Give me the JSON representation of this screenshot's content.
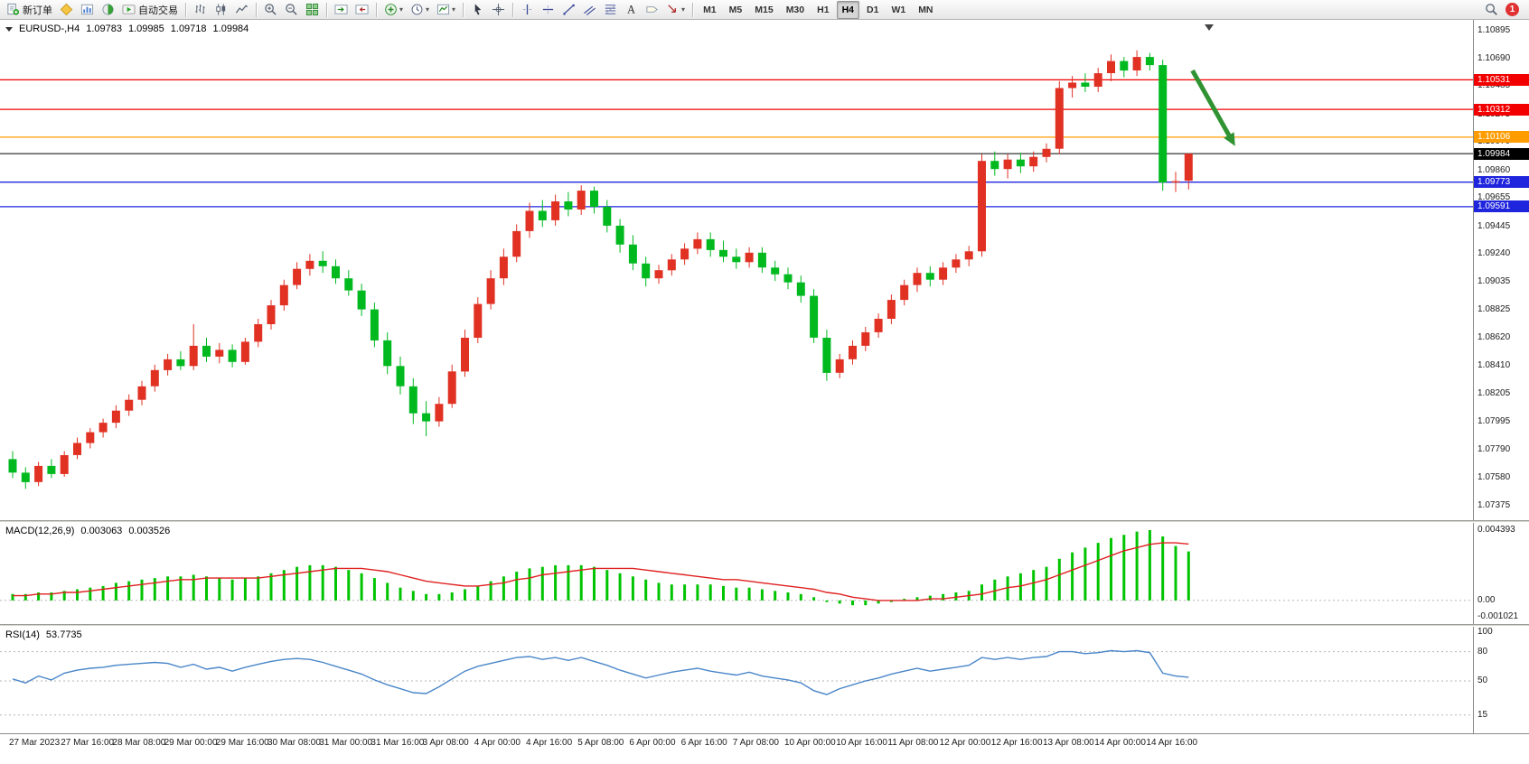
{
  "toolbar": {
    "buttons": [
      {
        "name": "new-order",
        "icon": "neworder",
        "label": "新订单"
      },
      {
        "name": "mql-community",
        "icon": "mql"
      },
      {
        "name": "chart-profile",
        "icon": "profile"
      },
      {
        "name": "market-depth",
        "icon": "depth"
      },
      {
        "name": "auto-trading",
        "icon": "autotrade",
        "label": "自动交易"
      },
      {
        "sep": true
      },
      {
        "name": "bar-chart-mode",
        "icon": "bars"
      },
      {
        "name": "candlestick-mode",
        "icon": "candles"
      },
      {
        "name": "line-chart-mode",
        "icon": "linechart"
      },
      {
        "sep": true
      },
      {
        "name": "zoom-in",
        "icon": "zoomin"
      },
      {
        "name": "zoom-out",
        "icon": "zoomout"
      },
      {
        "name": "tile-windows",
        "icon": "tile"
      },
      {
        "sep": true
      },
      {
        "name": "auto-scroll",
        "icon": "autoscroll"
      },
      {
        "name": "chart-shift",
        "icon": "chartshift"
      },
      {
        "sep": true
      },
      {
        "name": "indicators",
        "icon": "indicators",
        "dropdown": true
      },
      {
        "name": "periods",
        "icon": "clock",
        "dropdown": true
      },
      {
        "name": "templates",
        "icon": "template",
        "dropdown": true
      },
      {
        "sep": true
      },
      {
        "name": "cursor-tool",
        "icon": "cursor"
      },
      {
        "name": "crosshair-tool",
        "icon": "crosshair"
      },
      {
        "sep": true
      },
      {
        "name": "vertical-line-tool",
        "icon": "vline"
      },
      {
        "name": "horizontal-line-tool",
        "icon": "hline"
      },
      {
        "name": "trendline-tool",
        "icon": "trendline"
      },
      {
        "name": "equidistant-channel-tool",
        "icon": "channel"
      },
      {
        "name": "fibonacci-tool",
        "icon": "fibo"
      },
      {
        "name": "text-tool",
        "icon": "text"
      },
      {
        "name": "label-tool",
        "icon": "label"
      },
      {
        "name": "arrows-tool",
        "icon": "arrowobj",
        "dropdown": true
      },
      {
        "sep": true
      }
    ],
    "timeframes": [
      "M1",
      "M5",
      "M15",
      "M30",
      "H1",
      "H4",
      "D1",
      "W1",
      "MN"
    ],
    "active_timeframe": "H4",
    "notification_badge": "1"
  },
  "chart_header": {
    "symbol_period": "EURUSD-,H4",
    "open": "1.09783",
    "high": "1.09985",
    "low": "1.09718",
    "close": "1.09984"
  },
  "levels": [
    {
      "price": 1.10531,
      "label": "1.10531",
      "color": "#f20000"
    },
    {
      "price": 1.10312,
      "label": "1.10312",
      "color": "#f20000"
    },
    {
      "price": 1.10106,
      "label": "1.10106",
      "color": "#ff9c00"
    },
    {
      "price": 1.09984,
      "label": "1.09984",
      "color": "#000000",
      "current": true
    },
    {
      "price": 1.09773,
      "label": "1.09773",
      "color": "#1f24dd"
    },
    {
      "price": 1.09591,
      "label": "1.09591",
      "color": "#1f24dd"
    }
  ],
  "price_axis": {
    "top": 1.10895,
    "bottom": 1.07375,
    "labels": [
      "1.10895",
      "1.10690",
      "1.10485",
      "1.10275",
      "1.10070",
      "1.09860",
      "1.09655",
      "1.09445",
      "1.09240",
      "1.09035",
      "1.08825",
      "1.08620",
      "1.08410",
      "1.08205",
      "1.07995",
      "1.07790",
      "1.07580",
      "1.07375"
    ]
  },
  "time_axis": [
    "27 Mar 2023",
    "27 Mar 16:00",
    "28 Mar 08:00",
    "29 Mar 00:00",
    "29 Mar 16:00",
    "30 Mar 08:00",
    "31 Mar 00:00",
    "31 Mar 16:00",
    "3 Apr 08:00",
    "4 Apr 00:00",
    "4 Apr 16:00",
    "5 Apr 08:00",
    "6 Apr 00:00",
    "6 Apr 16:00",
    "7 Apr 08:00",
    "10 Apr 00:00",
    "10 Apr 16:00",
    "11 Apr 08:00",
    "12 Apr 00:00",
    "12 Apr 16:00",
    "13 Apr 08:00",
    "14 Apr 00:00",
    "14 Apr 16:00"
  ],
  "chart_data": {
    "type": "candlestick",
    "symbol": "EURUSD-",
    "timeframe": "H4",
    "colors": {
      "up": "#e03123",
      "down": "#00b91f"
    },
    "candles": [
      [
        1.0772,
        1.0778,
        1.0758,
        1.0762
      ],
      [
        1.0762,
        1.0766,
        1.075,
        1.0755
      ],
      [
        1.0755,
        1.077,
        1.0752,
        1.0767
      ],
      [
        1.0767,
        1.0772,
        1.0758,
        1.0761
      ],
      [
        1.0761,
        1.0778,
        1.0759,
        1.0775
      ],
      [
        1.0775,
        1.0788,
        1.0772,
        1.0784
      ],
      [
        1.0784,
        1.0795,
        1.078,
        1.0792
      ],
      [
        1.0792,
        1.0802,
        1.0788,
        1.0799
      ],
      [
        1.0799,
        1.0812,
        1.0795,
        1.0808
      ],
      [
        1.0808,
        1.082,
        1.0804,
        1.0816
      ],
      [
        1.0816,
        1.083,
        1.0812,
        1.0826
      ],
      [
        1.0826,
        1.0842,
        1.0822,
        1.0838
      ],
      [
        1.0838,
        1.085,
        1.0834,
        1.0846
      ],
      [
        1.0846,
        1.0852,
        1.0838,
        1.0841
      ],
      [
        1.0841,
        1.0872,
        1.0838,
        1.0856
      ],
      [
        1.0856,
        1.0862,
        1.0844,
        1.0848
      ],
      [
        1.0848,
        1.0858,
        1.0843,
        1.0853
      ],
      [
        1.0853,
        1.0857,
        1.084,
        1.0844
      ],
      [
        1.0844,
        1.0862,
        1.0842,
        1.0859
      ],
      [
        1.0859,
        1.0876,
        1.0855,
        1.0872
      ],
      [
        1.0872,
        1.089,
        1.0868,
        1.0886
      ],
      [
        1.0886,
        1.0905,
        1.0882,
        1.0901
      ],
      [
        1.0901,
        1.0918,
        1.0898,
        1.0913
      ],
      [
        1.0913,
        1.0924,
        1.0908,
        1.0919
      ],
      [
        1.0919,
        1.0926,
        1.091,
        1.0915
      ],
      [
        1.0915,
        1.092,
        1.0902,
        1.0906
      ],
      [
        1.0906,
        1.0912,
        1.0893,
        1.0897
      ],
      [
        1.0897,
        1.0902,
        1.0878,
        1.0883
      ],
      [
        1.0883,
        1.0888,
        1.0855,
        1.086
      ],
      [
        1.086,
        1.0866,
        1.0835,
        1.0841
      ],
      [
        1.0841,
        1.0848,
        1.082,
        1.0826
      ],
      [
        1.0826,
        1.0832,
        1.0798,
        1.0806
      ],
      [
        1.0806,
        1.0815,
        1.0789,
        1.08
      ],
      [
        1.08,
        1.0818,
        1.0796,
        1.0813
      ],
      [
        1.0813,
        1.0842,
        1.081,
        1.0837
      ],
      [
        1.0837,
        1.0868,
        1.0833,
        1.0862
      ],
      [
        1.0862,
        1.0892,
        1.0858,
        1.0887
      ],
      [
        1.0887,
        1.0912,
        1.0883,
        1.0906
      ],
      [
        1.0906,
        1.0928,
        1.0901,
        1.0922
      ],
      [
        1.0922,
        1.0946,
        1.0918,
        1.0941
      ],
      [
        1.0941,
        1.0962,
        1.0936,
        1.0956
      ],
      [
        1.0956,
        1.0964,
        1.0944,
        1.0949
      ],
      [
        1.0949,
        1.0968,
        1.0945,
        1.0963
      ],
      [
        1.0963,
        1.097,
        1.0952,
        1.0957
      ],
      [
        1.0957,
        1.0975,
        1.0953,
        1.0971
      ],
      [
        1.0971,
        1.0974,
        1.0954,
        1.0959
      ],
      [
        1.0959,
        1.0964,
        1.094,
        1.0945
      ],
      [
        1.0945,
        1.095,
        1.0925,
        1.0931
      ],
      [
        1.0931,
        1.0938,
        1.0912,
        1.0917
      ],
      [
        1.0917,
        1.0922,
        1.09,
        1.0906
      ],
      [
        1.0906,
        1.0916,
        1.0902,
        1.0912
      ],
      [
        1.0912,
        1.0924,
        1.0908,
        1.092
      ],
      [
        1.092,
        1.0932,
        1.0916,
        1.0928
      ],
      [
        1.0928,
        1.094,
        1.0924,
        1.0935
      ],
      [
        1.0935,
        1.094,
        1.0922,
        1.0927
      ],
      [
        1.0927,
        1.0934,
        1.0918,
        1.0922
      ],
      [
        1.0922,
        1.0928,
        1.0913,
        1.0918
      ],
      [
        1.0918,
        1.0929,
        1.0914,
        1.0925
      ],
      [
        1.0925,
        1.0929,
        1.091,
        1.0914
      ],
      [
        1.0914,
        1.0919,
        1.0904,
        1.0909
      ],
      [
        1.0909,
        1.0914,
        1.0898,
        1.0903
      ],
      [
        1.0903,
        1.0908,
        1.0888,
        1.0893
      ],
      [
        1.0893,
        1.0898,
        1.0858,
        1.0862
      ],
      [
        1.0862,
        1.0868,
        1.083,
        1.0836
      ],
      [
        1.0836,
        1.085,
        1.0832,
        1.0846
      ],
      [
        1.0846,
        1.086,
        1.0842,
        1.0856
      ],
      [
        1.0856,
        1.087,
        1.0852,
        1.0866
      ],
      [
        1.0866,
        1.088,
        1.0862,
        1.0876
      ],
      [
        1.0876,
        1.0894,
        1.0872,
        1.089
      ],
      [
        1.089,
        1.0905,
        1.0886,
        1.0901
      ],
      [
        1.0901,
        1.0914,
        1.0896,
        1.091
      ],
      [
        1.091,
        1.0915,
        1.09,
        1.0905
      ],
      [
        1.0905,
        1.0918,
        1.0901,
        1.0914
      ],
      [
        1.0914,
        1.0924,
        1.091,
        1.092
      ],
      [
        1.092,
        1.093,
        1.0915,
        1.0926
      ],
      [
        1.0926,
        1.0998,
        1.0922,
        1.0993
      ],
      [
        1.0993,
        1.1,
        1.0982,
        1.0987
      ],
      [
        1.0987,
        1.0998,
        1.098,
        1.0994
      ],
      [
        1.0994,
        1.0999,
        1.0984,
        1.0989
      ],
      [
        1.0989,
        1.1,
        1.0985,
        1.0996
      ],
      [
        1.0996,
        1.1006,
        1.0992,
        1.1002
      ],
      [
        1.1002,
        1.1052,
        1.0998,
        1.1047
      ],
      [
        1.1047,
        1.1056,
        1.104,
        1.1051
      ],
      [
        1.1051,
        1.1058,
        1.1044,
        1.1048
      ],
      [
        1.1048,
        1.1062,
        1.1044,
        1.1058
      ],
      [
        1.1058,
        1.1072,
        1.1052,
        1.1067
      ],
      [
        1.1067,
        1.107,
        1.1055,
        1.106
      ],
      [
        1.106,
        1.1075,
        1.1056,
        1.107
      ],
      [
        1.107,
        1.1073,
        1.106,
        1.1064
      ],
      [
        1.1064,
        1.1068,
        1.0971,
        1.0977
      ],
      [
        1.0977,
        1.0985,
        1.097,
        1.0978
      ],
      [
        1.09783,
        1.09985,
        1.09718,
        1.09984
      ]
    ],
    "indicators": {
      "macd": {
        "name": "MACD(12,26,9)",
        "main_value": "0.003063",
        "signal_value": "0.003526",
        "max": 0.004393,
        "min": -0.001021,
        "scale": [
          "0.004393",
          "0.00",
          "-0.001021"
        ],
        "histogram_color": "#00c400",
        "signal_color": "#e02020",
        "histogram": [
          0.0004,
          0.0004,
          0.0005,
          0.0005,
          0.0006,
          0.0007,
          0.0008,
          0.0009,
          0.0011,
          0.0012,
          0.0013,
          0.0014,
          0.0015,
          0.0015,
          0.0016,
          0.0015,
          0.0014,
          0.0013,
          0.0014,
          0.0015,
          0.0017,
          0.0019,
          0.0021,
          0.0022,
          0.0022,
          0.0021,
          0.0019,
          0.0017,
          0.0014,
          0.0011,
          0.0008,
          0.0006,
          0.0004,
          0.0004,
          0.0005,
          0.0007,
          0.0009,
          0.0012,
          0.0015,
          0.0018,
          0.002,
          0.0021,
          0.0022,
          0.0022,
          0.0022,
          0.0021,
          0.0019,
          0.0017,
          0.0015,
          0.0013,
          0.0011,
          0.001,
          0.001,
          0.001,
          0.001,
          0.0009,
          0.0008,
          0.0008,
          0.0007,
          0.0006,
          0.0005,
          0.0004,
          0.0002,
          -0.0001,
          -0.0002,
          -0.0003,
          -0.0003,
          -0.0002,
          -0.0001,
          0.0001,
          0.0002,
          0.0003,
          0.0004,
          0.0005,
          0.0006,
          0.001,
          0.0013,
          0.0015,
          0.0017,
          0.0019,
          0.0021,
          0.0026,
          0.003,
          0.0033,
          0.0036,
          0.0039,
          0.0041,
          0.0043,
          0.004393,
          0.004,
          0.0034,
          0.003063
        ],
        "signal": [
          0.0003,
          0.0003,
          0.0004,
          0.0004,
          0.0005,
          0.0005,
          0.0006,
          0.0007,
          0.0008,
          0.0009,
          0.001,
          0.0011,
          0.0012,
          0.0013,
          0.0013,
          0.0014,
          0.0014,
          0.0014,
          0.0014,
          0.0014,
          0.0015,
          0.0016,
          0.0017,
          0.0018,
          0.0019,
          0.002,
          0.002,
          0.002,
          0.0019,
          0.0018,
          0.0016,
          0.0014,
          0.0012,
          0.0011,
          0.001,
          0.0009,
          0.0009,
          0.001,
          0.0011,
          0.0013,
          0.0014,
          0.0016,
          0.0017,
          0.0018,
          0.0019,
          0.002,
          0.002,
          0.002,
          0.002,
          0.0019,
          0.0018,
          0.0017,
          0.0016,
          0.0015,
          0.0014,
          0.0013,
          0.0013,
          0.0012,
          0.0011,
          0.001,
          0.0009,
          0.0008,
          0.0007,
          0.0005,
          0.0004,
          0.0002,
          0.0001,
          0.0,
          0.0,
          0.0,
          0.0,
          0.0001,
          0.0001,
          0.0002,
          0.0003,
          0.0004,
          0.0006,
          0.0008,
          0.0009,
          0.0011,
          0.0013,
          0.0016,
          0.0019,
          0.0022,
          0.0025,
          0.0028,
          0.0031,
          0.0033,
          0.0035,
          0.0036,
          0.0036,
          0.003526
        ]
      },
      "rsi": {
        "name": "RSI(14)",
        "value": "53.7735",
        "line_color": "#4a86c8",
        "scale": [
          "100",
          "80",
          "50",
          "15"
        ],
        "scale_values": [
          100,
          80,
          50,
          15
        ],
        "level_lines": [
          80,
          50,
          15
        ],
        "values": [
          52,
          48,
          55,
          51,
          58,
          61,
          63,
          64,
          66,
          67,
          68,
          69,
          68,
          64,
          67,
          62,
          64,
          60,
          64,
          67,
          70,
          72,
          73,
          72,
          69,
          65,
          61,
          57,
          51,
          46,
          42,
          38,
          37,
          44,
          52,
          60,
          65,
          68,
          71,
          74,
          75,
          72,
          74,
          71,
          74,
          70,
          66,
          61,
          57,
          53,
          56,
          59,
          61,
          63,
          60,
          58,
          56,
          59,
          55,
          53,
          51,
          48,
          40,
          36,
          42,
          46,
          50,
          53,
          57,
          60,
          63,
          60,
          62,
          64,
          66,
          74,
          72,
          74,
          72,
          74,
          75,
          80,
          80,
          78,
          79,
          81,
          80,
          81,
          79,
          58,
          55,
          53.7735
        ]
      }
    },
    "annotation_arrow": {
      "color": "#2f9331",
      "direction": "down-right",
      "from": {
        "index": 91.3,
        "price": 1.106
      },
      "to": {
        "index": 94.6,
        "price": 1.1004
      }
    }
  }
}
